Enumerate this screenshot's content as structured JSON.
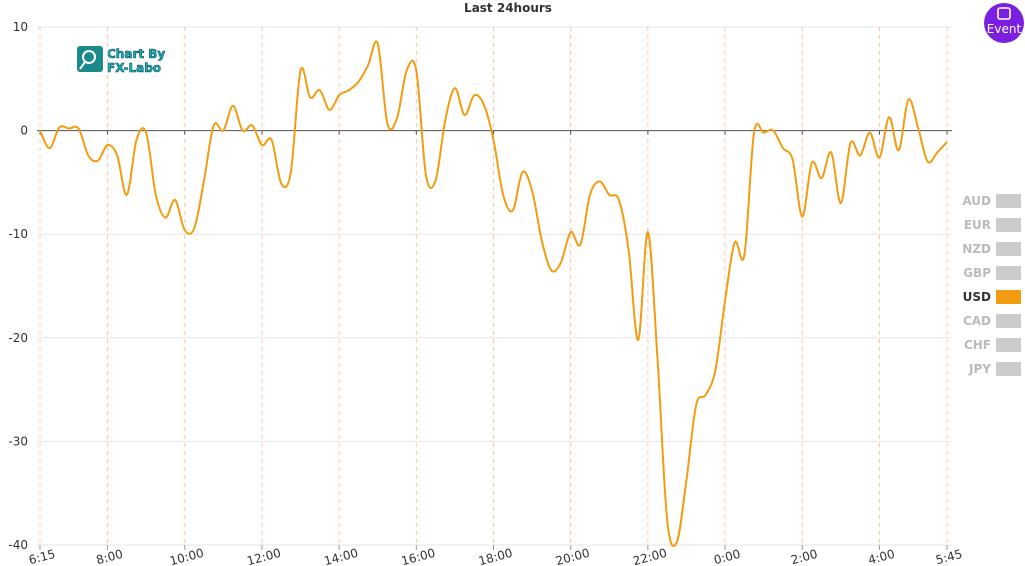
{
  "chart_data": {
    "type": "line",
    "title": "Last 24hours",
    "x": [
      0,
      0.25,
      0.5,
      0.75,
      1,
      1.25,
      1.5,
      1.75,
      2,
      2.25,
      2.5,
      2.75,
      3,
      3.25,
      3.5,
      3.75,
      4,
      4.25,
      4.5,
      4.75,
      5,
      5.25,
      5.5,
      5.75,
      6,
      6.25,
      6.5,
      6.75,
      7,
      7.25,
      7.5,
      7.75,
      8,
      8.25,
      8.5,
      8.75,
      9,
      9.25,
      9.5,
      9.75,
      10,
      10.25,
      10.5,
      10.75,
      11,
      11.25,
      11.5,
      11.75,
      12,
      12.25,
      12.5,
      12.75,
      13,
      13.25,
      13.5,
      13.75,
      14,
      14.25,
      14.5,
      14.75,
      15,
      15.25,
      15.5,
      15.75,
      16,
      16.25,
      16.5,
      16.75,
      17,
      17.25,
      17.5,
      17.75,
      18,
      18.25,
      18.5,
      18.75,
      19,
      19.25,
      19.5,
      19.75,
      20,
      20.25,
      20.5,
      20.75,
      21,
      21.25,
      21.5,
      21.75,
      22,
      22.25,
      22.5,
      22.75,
      23,
      23.25,
      23.5
    ],
    "series": [
      {
        "name": "USD",
        "color": "#f39c12",
        "values": [
          0,
          -1.7,
          0.3,
          0.2,
          0.2,
          -2.4,
          -2.9,
          -1.4,
          -2.4,
          -6.2,
          -0.9,
          -0.2,
          -6.2,
          -8.4,
          -6.7,
          -9.6,
          -9.4,
          -4.8,
          0.5,
          0,
          2.4,
          0,
          0.5,
          -1.4,
          -0.9,
          -5.1,
          -4.0,
          5.8,
          3.2,
          3.9,
          2.0,
          3.4,
          3.9,
          4.7,
          6.3,
          8.4,
          0.7,
          1.2,
          5.8,
          5.8,
          -4.3,
          -4.8,
          1.0,
          4.1,
          1.5,
          3.4,
          2.5,
          -0.9,
          -6.2,
          -7.7,
          -4.0,
          -5.8,
          -10.6,
          -13.5,
          -12.7,
          -9.8,
          -11.0,
          -6.2,
          -4.9,
          -6.2,
          -6.7,
          -11.5,
          -20.2,
          -9.8,
          -22.1,
          -37.6,
          -39.7,
          -33.7,
          -26.5,
          -25.5,
          -23.1,
          -16.4,
          -10.8,
          -12.0,
          -0.2,
          -0.2,
          0,
          -1.7,
          -2.8,
          -8.3,
          -3.1,
          -4.6,
          -2.1,
          -7.0,
          -1.2,
          -2.4,
          -0.2,
          -2.6,
          1.3,
          -1.9,
          3.0,
          0.3,
          -3.0,
          -2.1,
          -1.1
        ]
      }
    ],
    "xlim": [
      0,
      23.5
    ],
    "xticks": [
      {
        "value": 0,
        "label": "6:15"
      },
      {
        "value": 1.75,
        "label": "8:00"
      },
      {
        "value": 3.75,
        "label": "10:00"
      },
      {
        "value": 5.75,
        "label": "12:00"
      },
      {
        "value": 7.75,
        "label": "14:00"
      },
      {
        "value": 9.75,
        "label": "16:00"
      },
      {
        "value": 11.75,
        "label": "18:00"
      },
      {
        "value": 13.75,
        "label": "20:00"
      },
      {
        "value": 15.75,
        "label": "22:00"
      },
      {
        "value": 17.75,
        "label": "0:00"
      },
      {
        "value": 19.75,
        "label": "2:00"
      },
      {
        "value": 21.75,
        "label": "4:00"
      },
      {
        "value": 23.5,
        "label": "5:45"
      }
    ],
    "ylim": [
      -40,
      10
    ],
    "yticks": [
      10,
      0,
      -10,
      -20,
      -30,
      -40
    ],
    "grid": true,
    "legend": [
      "AUD",
      "EUR",
      "NZD",
      "GBP",
      "USD",
      "CAD",
      "CHF",
      "JPY"
    ],
    "legend_inactive_color": "#cccccc"
  },
  "logo": [
    "Chart By",
    "FX-Labo"
  ],
  "event_button": "Event"
}
